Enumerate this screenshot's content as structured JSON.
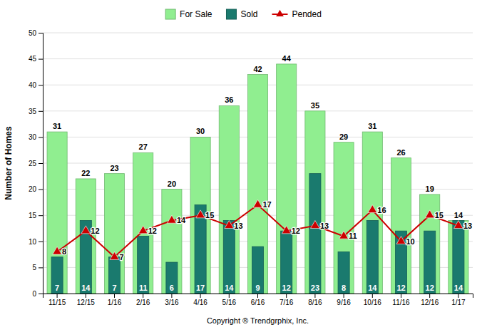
{
  "chart_data": {
    "type": "bar",
    "y_label": "Number of Homes",
    "x_label": "Copyright ® Trendgrphix, Inc.",
    "categories": [
      "11/15",
      "12/15",
      "1/16",
      "2/16",
      "3/16",
      "4/16",
      "5/16",
      "6/16",
      "7/16",
      "8/16",
      "9/16",
      "10/16",
      "11/16",
      "12/16",
      "1/17"
    ],
    "series": [
      {
        "name": "For Sale",
        "type": "bar",
        "color": "#90EE90",
        "values": [
          31,
          22,
          23,
          27,
          20,
          30,
          36,
          42,
          44,
          35,
          29,
          31,
          26,
          19,
          14
        ]
      },
      {
        "name": "Sold",
        "type": "bar",
        "color": "#1a7a6e",
        "values": [
          7,
          14,
          7,
          11,
          6,
          17,
          14,
          9,
          12,
          23,
          8,
          14,
          12,
          12,
          14
        ]
      },
      {
        "name": "Pended",
        "type": "line",
        "color": "#cc0000",
        "marker": "triangle",
        "values": [
          8,
          12,
          7,
          12,
          14,
          15,
          13,
          17,
          12,
          13,
          11,
          16,
          10,
          15,
          13
        ]
      }
    ],
    "ylim": [
      0,
      50
    ],
    "yticks": [
      0,
      5,
      10,
      15,
      20,
      25,
      30,
      35,
      40,
      45,
      50
    ],
    "grid": true,
    "legend": "top",
    "data_labels": true
  }
}
